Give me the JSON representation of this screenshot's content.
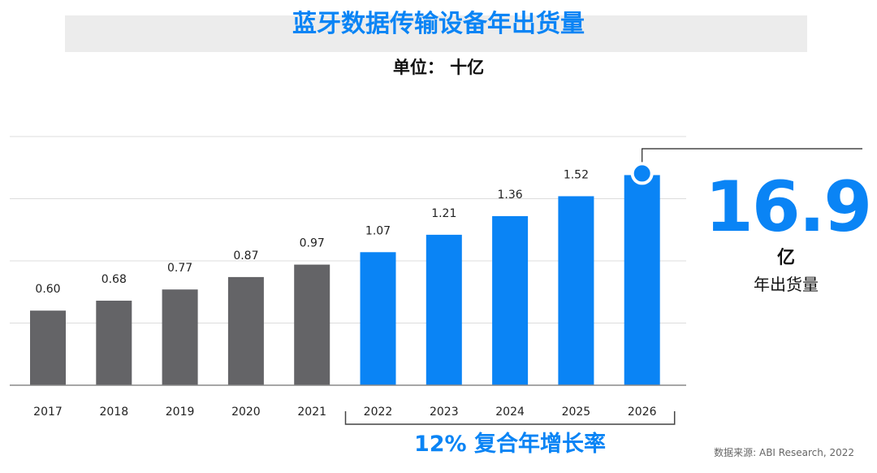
{
  "colors": {
    "historical": "#646467",
    "forecast": "#0a84f5",
    "accent": "#0a84f5",
    "grid": "#dcdcdc",
    "title_band": "#ececec"
  },
  "header": {
    "title": "蓝牙数据传输设备年出货量",
    "unit": "单位：  十亿"
  },
  "highlight": {
    "value": "16.9",
    "unit": "亿",
    "caption": "年出货量"
  },
  "cagr_label": "12% 复合年增长率",
  "source": "数据来源: ABI Research, 2022",
  "chart_data": {
    "type": "bar",
    "title": "蓝牙数据传输设备年出货量",
    "ylabel": "",
    "xlabel": "",
    "categories": [
      "2017",
      "2018",
      "2019",
      "2020",
      "2021",
      "2022",
      "2023",
      "2024",
      "2025",
      "2026"
    ],
    "values": [
      0.6,
      0.68,
      0.77,
      0.87,
      0.97,
      1.07,
      1.21,
      1.36,
      1.52,
      1.69
    ],
    "data_labels": [
      "0.60",
      "0.68",
      "0.77",
      "0.87",
      "0.97",
      "1.07",
      "1.21",
      "1.36",
      "1.52",
      ""
    ],
    "bar_groups": [
      "historical",
      "historical",
      "historical",
      "historical",
      "historical",
      "forecast",
      "forecast",
      "forecast",
      "forecast",
      "forecast"
    ],
    "ylim": [
      0,
      2.0
    ],
    "grid": true,
    "legend": "none"
  }
}
